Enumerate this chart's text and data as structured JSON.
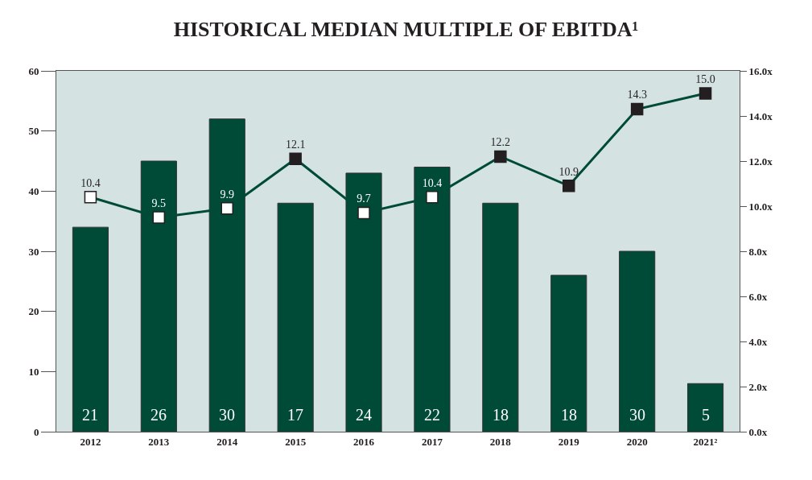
{
  "chart_data": {
    "type": "bar",
    "title": "HISTORICAL MEDIAN MULTIPLE OF EBITDA¹",
    "categories": [
      "2012",
      "2013",
      "2014",
      "2015",
      "2016",
      "2017",
      "2018",
      "2019",
      "2020",
      "2021²"
    ],
    "series": [
      {
        "color": "#004a38",
        "values": [
          34,
          45,
          52,
          38,
          43,
          44,
          38,
          26,
          30,
          8
        ]
      },
      {
        "type": "line",
        "axis": "y2",
        "color": "#004a38",
        "marker": "square",
        "colors": [
          "#ffffff",
          "#ffffff",
          "#ffffff",
          "#231f20",
          "#ffffff",
          "#ffffff",
          "#231f20",
          "#231f20",
          "#231f20",
          "#231f20"
        ],
        "values": [
          10.4,
          9.5,
          9.9,
          12.1,
          9.7,
          10.4,
          12.2,
          10.9,
          14.3,
          15.0
        ],
        "value_labels": [
          "10.4",
          "9.5",
          "9.9",
          "12.1",
          "9.7",
          "10.4",
          "12.2",
          "10.9",
          "14.3",
          "15.0"
        ]
      }
    ],
    "annotations": [
      "21",
      "26",
      "30",
      "17",
      "24",
      "22",
      "18",
      "18",
      "30",
      "5"
    ],
    "ylim": [
      0,
      60
    ],
    "yticks": [
      0,
      10,
      20,
      30,
      40,
      50,
      60
    ],
    "y2lim": [
      0,
      16
    ],
    "y2ticks": [
      {
        "value": 0,
        "label": "0.0x"
      },
      {
        "value": 2,
        "label": "2.0x"
      },
      {
        "value": 4,
        "label": "4.0x"
      },
      {
        "value": 6,
        "label": "6.0x"
      },
      {
        "value": 8,
        "label": "8.0x"
      },
      {
        "value": 10,
        "label": "10.0x"
      },
      {
        "value": 12,
        "label": "12.0x"
      },
      {
        "value": 14,
        "label": "14.0x"
      },
      {
        "value": 16,
        "label": "16.0x"
      }
    ],
    "grid": false
  }
}
